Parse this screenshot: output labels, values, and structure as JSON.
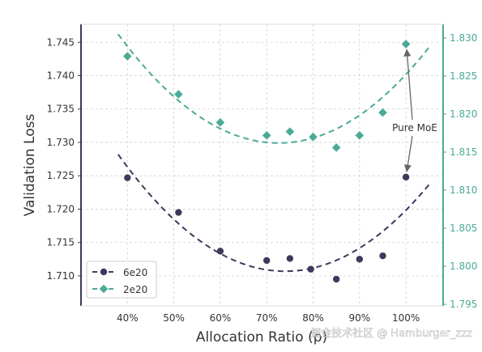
{
  "chart_data": {
    "type": "scatter",
    "xlabel": "Allocation Ratio (ρ)",
    "ylabel": "Validation Loss",
    "x_ticks": [
      "40%",
      "50%",
      "60%",
      "70%",
      "80%",
      "90%",
      "100%"
    ],
    "x_tick_values": [
      40,
      50,
      60,
      70,
      80,
      90,
      100
    ],
    "xlim": [
      30,
      108
    ],
    "y_left": {
      "ylim": [
        1.7055,
        1.7477
      ],
      "ticks": [
        "1.710",
        "1.715",
        "1.720",
        "1.725",
        "1.730",
        "1.735",
        "1.740",
        "1.745"
      ],
      "tick_values": [
        1.71,
        1.715,
        1.72,
        1.725,
        1.73,
        1.735,
        1.74,
        1.745
      ],
      "color": "#3d3a5c"
    },
    "y_right": {
      "ylim": [
        1.7948,
        1.8318
      ],
      "ticks": [
        "1.795",
        "1.800",
        "1.805",
        "1.810",
        "1.815",
        "1.820",
        "1.825",
        "1.830"
      ],
      "tick_values": [
        1.795,
        1.8,
        1.805,
        1.81,
        1.815,
        1.82,
        1.825,
        1.83
      ],
      "color": "#4aaa97"
    },
    "grid": true,
    "legend_position": "bottom-left",
    "series": [
      {
        "name": "6e20",
        "axis": "left",
        "marker": "circle",
        "color": "#3d3a5c",
        "points": [
          {
            "x": 40,
            "y": 1.7247
          },
          {
            "x": 51,
            "y": 1.7195
          },
          {
            "x": 60,
            "y": 1.7137
          },
          {
            "x": 70,
            "y": 1.7123
          },
          {
            "x": 75,
            "y": 1.7126
          },
          {
            "x": 79.5,
            "y": 1.711
          },
          {
            "x": 85,
            "y": 1.7095
          },
          {
            "x": 90,
            "y": 1.7125
          },
          {
            "x": 95,
            "y": 1.713
          },
          {
            "x": 100,
            "y": 1.7248
          }
        ],
        "fit_range": [
          38,
          105
        ],
        "fit_points": [
          {
            "x": 38,
            "y": 1.7282
          },
          {
            "x": 73,
            "y": 1.7107
          },
          {
            "x": 105,
            "y": 1.7237
          }
        ]
      },
      {
        "name": "2e20",
        "axis": "right",
        "marker": "diamond",
        "color": "#4aaa97",
        "points": [
          {
            "x": 40,
            "y": 1.8276
          },
          {
            "x": 51,
            "y": 1.8226
          },
          {
            "x": 60,
            "y": 1.8189
          },
          {
            "x": 70,
            "y": 1.8172
          },
          {
            "x": 75,
            "y": 1.8177
          },
          {
            "x": 80,
            "y": 1.817
          },
          {
            "x": 85,
            "y": 1.8156
          },
          {
            "x": 90,
            "y": 1.8172
          },
          {
            "x": 95,
            "y": 1.8202
          },
          {
            "x": 100,
            "y": 1.8292
          }
        ],
        "fit_range": [
          38,
          105
        ],
        "fit_points": [
          {
            "x": 38,
            "y": 1.8305
          },
          {
            "x": 73,
            "y": 1.8162
          },
          {
            "x": 105,
            "y": 1.8288
          }
        ]
      }
    ],
    "annotation": {
      "text": "Pure MoE",
      "targets": [
        {
          "series": "2e20",
          "x": 100,
          "y": 1.8292
        },
        {
          "series": "6e20",
          "x": 100,
          "y": 1.7248
        }
      ]
    }
  },
  "watermark": "掘金技术社区 @ Hamburger_zzz"
}
